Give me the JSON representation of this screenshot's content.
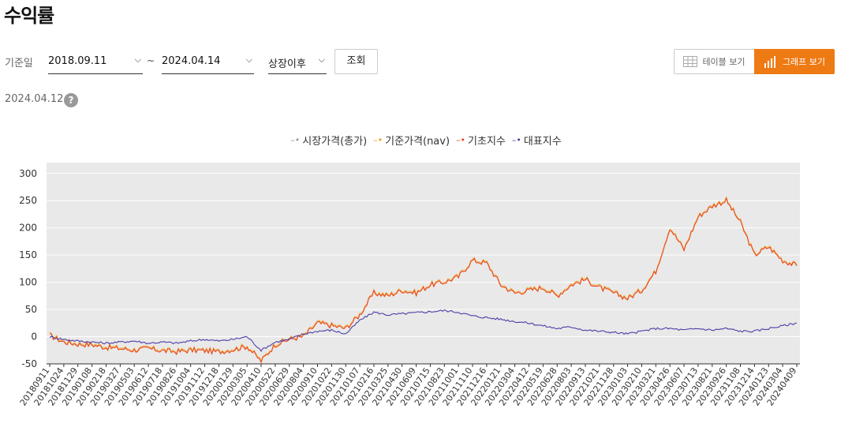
{
  "page": {
    "title": "수익률"
  },
  "filter": {
    "label": "기준일",
    "start_date": "2018.09.11",
    "end_date": "2024.04.14",
    "tilde": "~",
    "period": "상장이후",
    "search_label": "조회"
  },
  "view_toggle": {
    "table_label": "테이블 보기",
    "graph_label": "그래프 보기",
    "active": "graph"
  },
  "asof": {
    "date": "2024.04.12",
    "help": "?"
  },
  "colors": {
    "accent": "#ee7a14",
    "market": "#999999",
    "nav": "#f39c12",
    "base_index": "#e8461a",
    "rep_index": "#4b3fa8",
    "plot_bg": "#e9e9e9"
  },
  "chart_data": {
    "type": "line",
    "legend": [
      "시장가격(총가)",
      "기준가격(nav)",
      "기초지수",
      "대표지수"
    ],
    "ylim": [
      -50,
      320
    ],
    "yticks": [
      -50,
      0,
      50,
      100,
      150,
      200,
      250,
      300
    ],
    "x_tick_labels": [
      "20180911",
      "20181024",
      "20181129",
      "20190108",
      "20190218",
      "20190327",
      "20190503",
      "20190612",
      "20190718",
      "20190826",
      "20191004",
      "20191112",
      "20191218",
      "20200129",
      "20200305",
      "20200410",
      "20200522",
      "20200629",
      "20200804",
      "20200910",
      "20201022",
      "20201130",
      "20210107",
      "20210216",
      "20210325",
      "20210430",
      "20210609",
      "20210715",
      "20210823",
      "20211001",
      "20211110",
      "20211216",
      "20220121",
      "20220304",
      "20220412",
      "20220519",
      "20220628",
      "20220803",
      "20220913",
      "20221021",
      "20221128",
      "20230103",
      "20230210",
      "20230321",
      "20230426",
      "20230607",
      "20230713",
      "20230821",
      "20230926",
      "20231108",
      "20231214",
      "20240123",
      "20240304",
      "20240409"
    ],
    "series": [
      {
        "name": "기초지수",
        "values": [
          2,
          -10,
          -14,
          -15,
          -20,
          -22,
          -25,
          -22,
          -26,
          -28,
          -25,
          -26,
          -28,
          -24,
          -18,
          -45,
          -15,
          -5,
          0,
          25,
          20,
          15,
          40,
          80,
          75,
          85,
          80,
          95,
          100,
          110,
          140,
          135,
          95,
          80,
          85,
          90,
          75,
          95,
          105,
          90,
          80,
          70,
          85,
          120,
          200,
          160,
          220,
          240,
          250,
          210,
          150,
          165,
          140,
          130
        ]
      },
      {
        "name": "대표지수",
        "values": [
          0,
          -5,
          -8,
          -10,
          -12,
          -10,
          -8,
          -12,
          -10,
          -12,
          -8,
          -5,
          -8,
          -5,
          0,
          -25,
          -10,
          -5,
          5,
          10,
          12,
          5,
          30,
          45,
          40,
          42,
          44,
          46,
          48,
          45,
          38,
          35,
          32,
          28,
          25,
          20,
          15,
          18,
          12,
          10,
          8,
          5,
          10,
          15,
          15,
          12,
          15,
          12,
          15,
          10,
          10,
          15,
          20,
          25
        ]
      }
    ]
  }
}
